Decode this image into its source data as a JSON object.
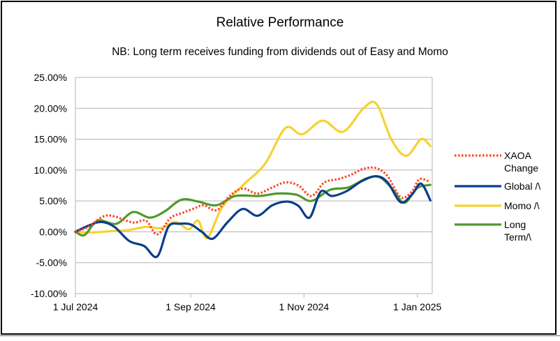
{
  "chart_data": {
    "type": "line",
    "title": "Relative Performance",
    "subtitle": "NB: Long term receives funding from dividends out of Easy and Momo",
    "xlabel": "",
    "ylabel": "",
    "x_ticks": [
      "1 Jul 2024",
      "1 Sep 2024",
      "1 Nov 2024",
      "1 Jan 2025"
    ],
    "y_ticks": [
      "25.00%",
      "20.00%",
      "15.00%",
      "10.00%",
      "5.00%",
      "0.00%",
      "-5.00%",
      "-10.00%"
    ],
    "ylim": [
      -10,
      25
    ],
    "xlim": [
      "2024-07-01",
      "2025-01-09"
    ],
    "grid": "horizontal",
    "legend_position": "right",
    "series": [
      {
        "name": "XAOA Change",
        "color": "#ff4420",
        "style": "dotted",
        "points": [
          [
            "2024-07-01",
            0.0
          ],
          [
            "2024-07-08",
            0.8
          ],
          [
            "2024-07-16",
            2.5
          ],
          [
            "2024-07-22",
            2.5
          ],
          [
            "2024-08-01",
            1.5
          ],
          [
            "2024-08-08",
            1.8
          ],
          [
            "2024-08-14",
            -0.4
          ],
          [
            "2024-08-21",
            2.2
          ],
          [
            "2024-08-27",
            3.0
          ],
          [
            "2024-09-03",
            3.8
          ],
          [
            "2024-09-08",
            4.3
          ],
          [
            "2024-09-15",
            3.5
          ],
          [
            "2024-09-22",
            5.8
          ],
          [
            "2024-09-29",
            7.0
          ],
          [
            "2024-10-07",
            6.2
          ],
          [
            "2024-10-15",
            7.2
          ],
          [
            "2024-10-22",
            8.0
          ],
          [
            "2024-10-29",
            7.5
          ],
          [
            "2024-11-05",
            5.8
          ],
          [
            "2024-11-12",
            8.0
          ],
          [
            "2024-11-19",
            8.5
          ],
          [
            "2024-11-26",
            9.2
          ],
          [
            "2024-12-03",
            10.2
          ],
          [
            "2024-12-10",
            10.3
          ],
          [
            "2024-12-16",
            9.0
          ],
          [
            "2024-12-23",
            5.6
          ],
          [
            "2024-12-29",
            6.5
          ],
          [
            "2025-01-02",
            8.5
          ],
          [
            "2025-01-07",
            8.2
          ]
        ]
      },
      {
        "name": "Global /\\",
        "color": "#0a3d8a",
        "style": "solid",
        "points": [
          [
            "2024-07-01",
            0.0
          ],
          [
            "2024-07-08",
            1.0
          ],
          [
            "2024-07-15",
            1.6
          ],
          [
            "2024-07-22",
            0.8
          ],
          [
            "2024-07-30",
            -1.5
          ],
          [
            "2024-08-07",
            -2.3
          ],
          [
            "2024-08-14",
            -4.0
          ],
          [
            "2024-08-20",
            0.8
          ],
          [
            "2024-08-26",
            1.3
          ],
          [
            "2024-09-01",
            1.2
          ],
          [
            "2024-09-07",
            0.0
          ],
          [
            "2024-09-13",
            -1.1
          ],
          [
            "2024-09-21",
            1.6
          ],
          [
            "2024-09-29",
            3.7
          ],
          [
            "2024-10-07",
            2.6
          ],
          [
            "2024-10-15",
            4.3
          ],
          [
            "2024-10-23",
            4.9
          ],
          [
            "2024-10-29",
            4.2
          ],
          [
            "2024-11-04",
            2.3
          ],
          [
            "2024-11-10",
            6.5
          ],
          [
            "2024-11-16",
            5.8
          ],
          [
            "2024-11-24",
            6.6
          ],
          [
            "2024-12-02",
            8.2
          ],
          [
            "2024-12-10",
            9.0
          ],
          [
            "2024-12-16",
            8.0
          ],
          [
            "2024-12-23",
            4.8
          ],
          [
            "2024-12-29",
            6.0
          ],
          [
            "2025-01-03",
            7.8
          ],
          [
            "2025-01-08",
            5.1
          ]
        ]
      },
      {
        "name": "Momo /\\",
        "color": "#f7d130",
        "style": "solid",
        "points": [
          [
            "2024-07-01",
            0.0
          ],
          [
            "2024-07-10",
            -0.1
          ],
          [
            "2024-07-20",
            0.1
          ],
          [
            "2024-07-30",
            0.3
          ],
          [
            "2024-08-08",
            0.8
          ],
          [
            "2024-08-16",
            0.6
          ],
          [
            "2024-08-24",
            1.6
          ],
          [
            "2024-08-31",
            0.4
          ],
          [
            "2024-09-05",
            1.8
          ],
          [
            "2024-09-10",
            -1.0
          ],
          [
            "2024-09-18",
            4.0
          ],
          [
            "2024-09-29",
            7.5
          ],
          [
            "2024-10-11",
            11.0
          ],
          [
            "2024-10-22",
            16.8
          ],
          [
            "2024-10-31",
            15.8
          ],
          [
            "2024-11-11",
            18.0
          ],
          [
            "2024-11-22",
            16.2
          ],
          [
            "2024-12-03",
            20.0
          ],
          [
            "2024-12-10",
            20.7
          ],
          [
            "2024-12-18",
            15.0
          ],
          [
            "2024-12-26",
            12.3
          ],
          [
            "2025-01-03",
            15.0
          ],
          [
            "2025-01-08",
            13.9
          ]
        ]
      },
      {
        "name": "Long Term/\\",
        "color": "#4f9a2a",
        "style": "solid",
        "points": [
          [
            "2024-07-01",
            0.0
          ],
          [
            "2024-07-06",
            -0.5
          ],
          [
            "2024-07-13",
            1.8
          ],
          [
            "2024-07-23",
            1.3
          ],
          [
            "2024-08-01",
            3.2
          ],
          [
            "2024-08-10",
            2.3
          ],
          [
            "2024-08-18",
            3.3
          ],
          [
            "2024-08-27",
            5.2
          ],
          [
            "2024-09-05",
            4.9
          ],
          [
            "2024-09-15",
            4.3
          ],
          [
            "2024-09-25",
            5.8
          ],
          [
            "2024-10-08",
            5.8
          ],
          [
            "2024-10-18",
            6.2
          ],
          [
            "2024-10-28",
            6.0
          ],
          [
            "2024-11-05",
            5.0
          ],
          [
            "2024-11-15",
            6.8
          ],
          [
            "2024-11-25",
            7.2
          ],
          [
            "2024-12-05",
            8.7
          ],
          [
            "2024-12-12",
            8.8
          ],
          [
            "2024-12-19",
            6.8
          ],
          [
            "2024-12-25",
            4.7
          ],
          [
            "2025-01-01",
            7.1
          ],
          [
            "2025-01-08",
            7.6
          ]
        ]
      }
    ],
    "legend": [
      {
        "lines": [
          "XAOA",
          "Change"
        ]
      },
      {
        "lines": [
          "Global /\\"
        ]
      },
      {
        "lines": [
          "Momo /\\"
        ]
      },
      {
        "lines": [
          "Long",
          "Term/\\"
        ]
      }
    ]
  }
}
